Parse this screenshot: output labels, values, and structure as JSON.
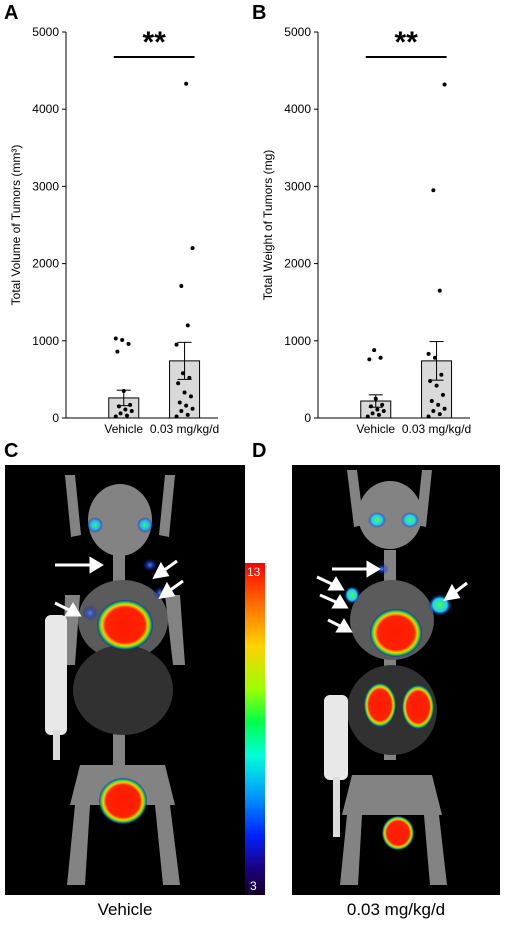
{
  "panels": {
    "a": "A",
    "b": "B",
    "c": "C",
    "d": "D"
  },
  "significance": "**",
  "colorbar": {
    "max": "13",
    "min": "3"
  },
  "captions": {
    "left": "Vehicle",
    "right": "0.03 mg/kg/d"
  },
  "chart_data": [
    {
      "type": "bar",
      "panel": "A",
      "categories": [
        "Vehicle",
        "0.03 mg/kg/d"
      ],
      "values": [
        260,
        740
      ],
      "errors": [
        100,
        240
      ],
      "ylabel": "Total Volume of Tumors (mm³)",
      "ylim": [
        0,
        5000
      ],
      "yticks": [
        "0",
        "1000",
        "2000",
        "3000",
        "4000",
        "5000"
      ],
      "points": [
        [
          20,
          30,
          60,
          90,
          110,
          150,
          170,
          350,
          860,
          960,
          1010,
          1030
        ],
        [
          20,
          40,
          90,
          120,
          160,
          200,
          280,
          330,
          450,
          520,
          580,
          950,
          1200,
          1710,
          2200,
          4330
        ]
      ]
    },
    {
      "type": "bar",
      "panel": "B",
      "categories": [
        "Vehicle",
        "0.03 mg/kg/d"
      ],
      "values": [
        220,
        740
      ],
      "errors": [
        80,
        250
      ],
      "ylabel": "Total Weight of Tumors (mg)",
      "ylim": [
        0,
        5000
      ],
      "yticks": [
        "0",
        "1000",
        "2000",
        "3000",
        "4000",
        "5000"
      ],
      "points": [
        [
          20,
          40,
          60,
          90,
          110,
          150,
          170,
          250,
          760,
          780,
          880
        ],
        [
          20,
          50,
          90,
          120,
          170,
          220,
          300,
          420,
          480,
          560,
          780,
          830,
          1650,
          2950,
          4320
        ]
      ]
    }
  ]
}
